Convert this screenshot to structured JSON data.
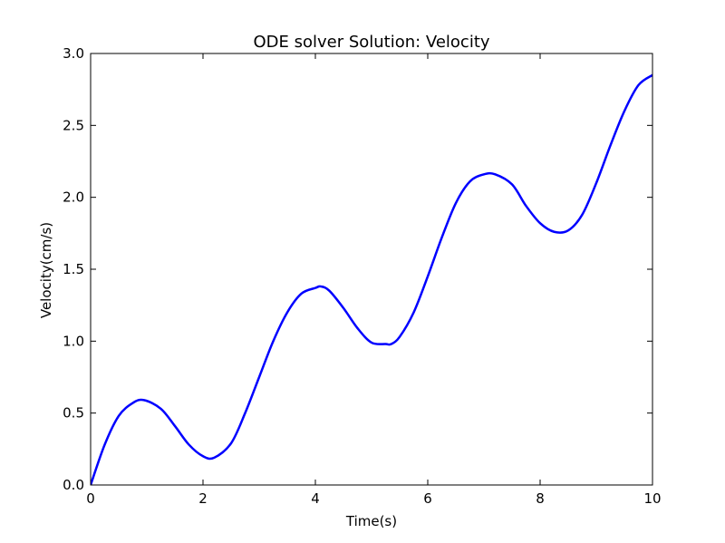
{
  "chart_data": {
    "type": "line",
    "title": "ODE solver Solution: Velocity",
    "xlabel": "Time(s)",
    "ylabel": "Velocity(cm/s)",
    "xlim": [
      0,
      10
    ],
    "ylim": [
      0,
      3.0
    ],
    "x_ticks": [
      0,
      2,
      4,
      6,
      8,
      10
    ],
    "x_tick_labels": [
      "0",
      "2",
      "4",
      "6",
      "8",
      "10"
    ],
    "y_ticks": [
      0,
      0.5,
      1.0,
      1.5,
      2.0,
      2.5,
      3.0
    ],
    "y_tick_labels": [
      "0.0",
      "0.5",
      "1.0",
      "1.5",
      "2.0",
      "2.5",
      "3.0"
    ],
    "grid": false,
    "series": [
      {
        "color": "#0000ff",
        "x": [
          0,
          0.25,
          0.5,
          0.75,
          0.95,
          1.25,
          1.5,
          1.75,
          2.0,
          2.2,
          2.5,
          2.75,
          3.0,
          3.25,
          3.5,
          3.75,
          4.0,
          4.1,
          4.25,
          4.5,
          4.75,
          5.0,
          5.25,
          5.35,
          5.5,
          5.75,
          6.0,
          6.25,
          6.5,
          6.75,
          7.0,
          7.2,
          7.5,
          7.75,
          8.0,
          8.25,
          8.5,
          8.75,
          9.0,
          9.25,
          9.5,
          9.75,
          10.0
        ],
        "y": [
          0,
          0.28,
          0.48,
          0.57,
          0.59,
          0.53,
          0.41,
          0.28,
          0.2,
          0.19,
          0.29,
          0.5,
          0.75,
          1.0,
          1.2,
          1.33,
          1.37,
          1.38,
          1.35,
          1.23,
          1.09,
          0.99,
          0.98,
          0.98,
          1.03,
          1.2,
          1.45,
          1.72,
          1.96,
          2.11,
          2.16,
          2.16,
          2.09,
          1.94,
          1.82,
          1.76,
          1.77,
          1.88,
          2.1,
          2.36,
          2.6,
          2.78,
          2.85
        ]
      }
    ]
  }
}
